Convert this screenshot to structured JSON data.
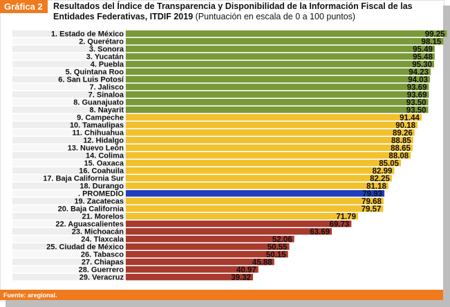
{
  "badge": "Gráfica 2",
  "title_bold": "Resultados del Índice de Transparencia y Disponibilidad de la Información Fiscal de las Entidades Federativas, ITDIF 2019",
  "title_normal": " (Puntuación en escala de 0 a 100 puntos)",
  "source": "Fuente: aregional.",
  "colors": {
    "green": "#7a9a3a",
    "yellow": "#f2c12e",
    "blue": "#1f3fbf",
    "red": "#a93a2e",
    "orange": "#ef7b1e"
  },
  "chart_data": {
    "type": "bar",
    "orientation": "horizontal",
    "xlim": [
      0,
      100
    ],
    "categories": [
      "1. Estado de México",
      "2. Querétaro",
      "3. Sonora",
      "3. Yucatán",
      "4. Puebla",
      "5. Quintana Roo",
      "6. San Luis Potosí",
      "7. Jalisco",
      "7. Sinaloa",
      "8. Guanajuato",
      "8. Nayarit",
      "9. Campeche",
      "10. Tamaulipas",
      "11. Chihuahua",
      "12. Hidalgo",
      "13. Nuevo León",
      "14. Colima",
      "15. Oaxaca",
      "16. Coahuila",
      "17. Baja California Sur",
      "18. Durango",
      ". PROMEDIO",
      "19. Zacatecas",
      "20. Baja California",
      "21. Morelos",
      "22. Aguascalientes",
      "23. Michoacán",
      "24. Tlaxcala",
      "25. Ciudad de México",
      "26. Tabasco",
      "27. Chiapas",
      "28. Guerrero",
      "29. Veracruz"
    ],
    "values": [
      99.25,
      98.15,
      95.49,
      95.48,
      95.3,
      94.23,
      94.03,
      93.69,
      93.69,
      93.5,
      93.5,
      91.44,
      90.18,
      89.26,
      88.85,
      88.65,
      88.08,
      85.05,
      82.99,
      82.25,
      81.18,
      79.93,
      79.68,
      79.57,
      71.79,
      69.73,
      63.69,
      52.06,
      50.55,
      50.15,
      45.88,
      40.97,
      39.32
    ],
    "value_labels": [
      "99.25",
      "98.15",
      "95.49",
      "95.48",
      "95.30",
      "94.23",
      "94.03",
      "93.69",
      "93.69",
      "93.50",
      "93.50",
      "91.44",
      "90.18",
      "89.26",
      "88.85",
      "88.65",
      "88.08",
      "85.05",
      "82.99",
      "82.25",
      "81.18",
      "79.93",
      "79.68",
      "79.57",
      "71.79",
      "69.73",
      "63.69",
      "52.06",
      "50.55",
      "50.15",
      "45.88",
      "40.97",
      "39.32"
    ],
    "bar_colors": [
      "green",
      "green",
      "green",
      "green",
      "green",
      "green",
      "green",
      "green",
      "green",
      "green",
      "green",
      "yellow",
      "yellow",
      "yellow",
      "yellow",
      "yellow",
      "yellow",
      "yellow",
      "yellow",
      "yellow",
      "yellow",
      "blue",
      "yellow",
      "yellow",
      "yellow",
      "red",
      "red",
      "red",
      "red",
      "red",
      "red",
      "red",
      "red"
    ]
  }
}
